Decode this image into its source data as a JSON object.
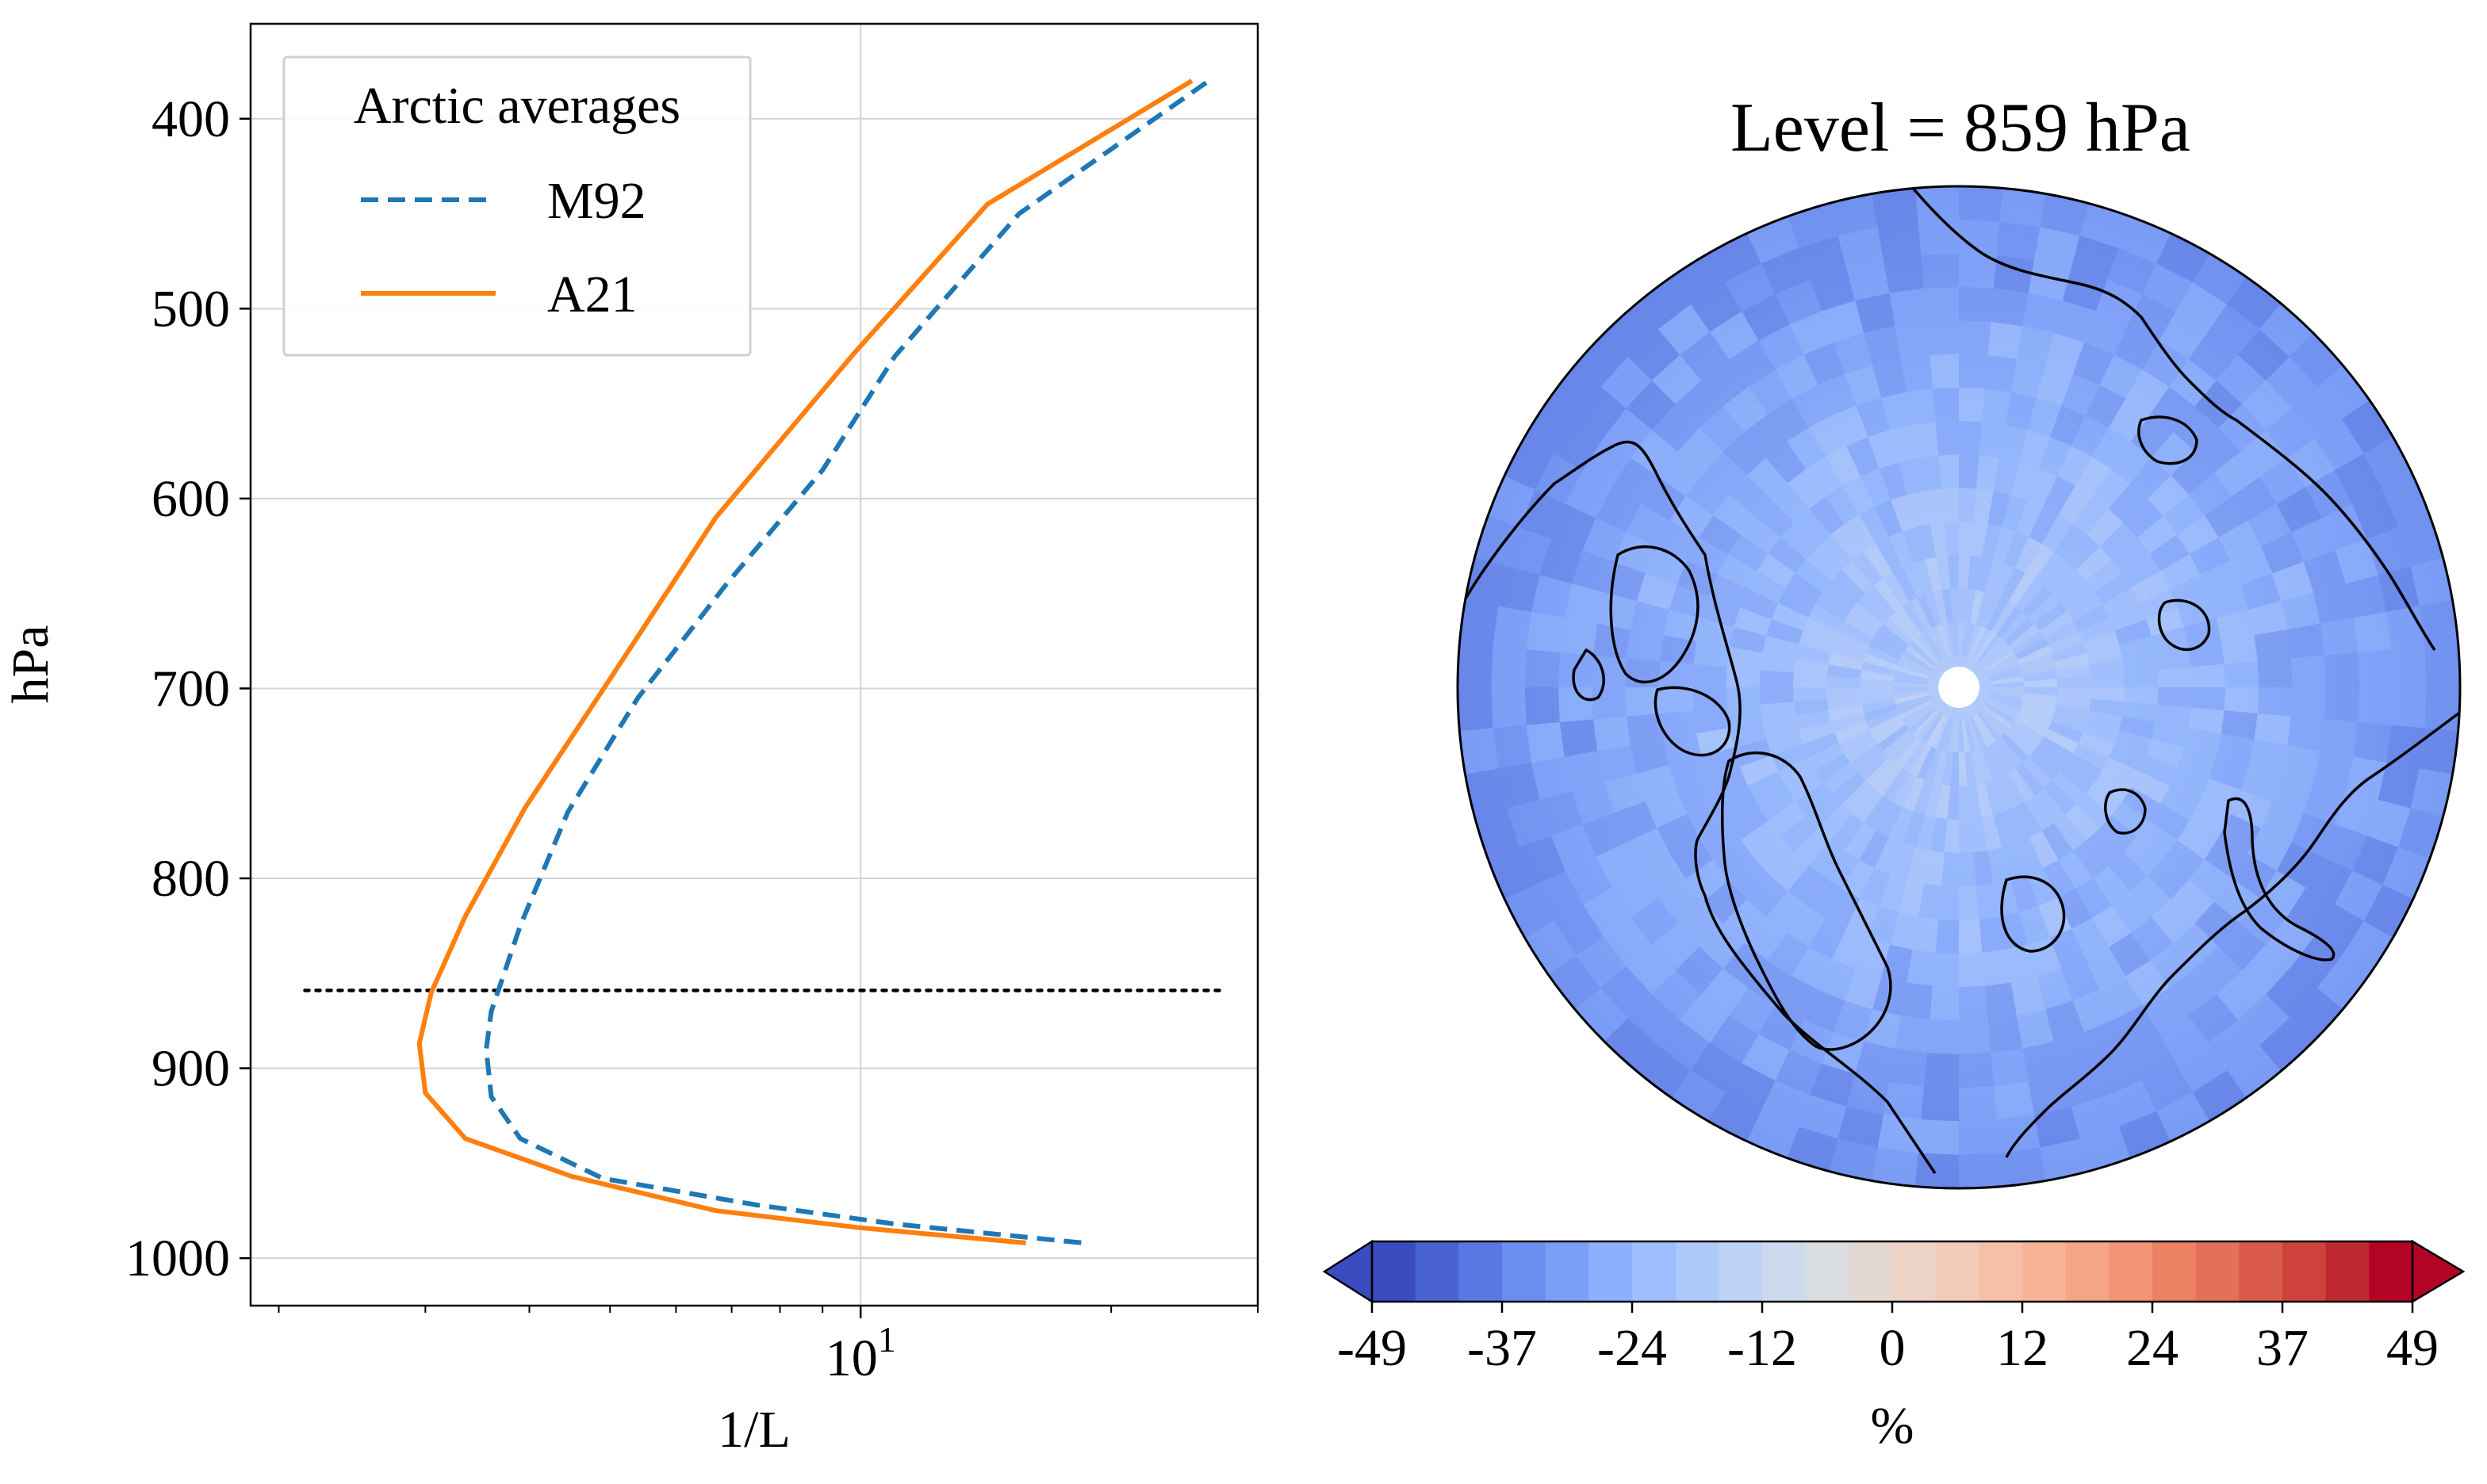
{
  "chart_data": [
    {
      "type": "line",
      "xlabel": "1/L",
      "ylabel": "hPa",
      "x_scale": "log",
      "x_tick_labels": [
        "10^1"
      ],
      "xlim": [
        1.85,
        30
      ],
      "ylim": [
        1025,
        350
      ],
      "y_ticks": [
        400,
        500,
        600,
        700,
        800,
        900,
        1000
      ],
      "y_tick_labels": [
        "400",
        "500",
        "600",
        "700",
        "800",
        "900",
        "1000"
      ],
      "grid": true,
      "legend": {
        "title": "Arctic averages",
        "position": "top-left"
      },
      "series": [
        {
          "name": "M92",
          "style": "dashed",
          "color": "#1f77b4",
          "points": [
            [
              26.0,
              381
            ],
            [
              15.5,
              450
            ],
            [
              11.0,
              525
            ],
            [
              9.0,
              585
            ],
            [
              6.9,
              645
            ],
            [
              5.4,
              705
            ],
            [
              4.45,
              765
            ],
            [
              3.9,
              825
            ],
            [
              3.6,
              870
            ],
            [
              3.55,
              890
            ],
            [
              3.6,
              915
            ],
            [
              3.9,
              937
            ],
            [
              4.9,
              958
            ],
            [
              7.5,
              972
            ],
            [
              11.0,
              982
            ],
            [
              18.5,
              992
            ]
          ]
        },
        {
          "name": "A21",
          "style": "solid",
          "color": "#ff7f0e",
          "points": [
            [
              25.0,
              380
            ],
            [
              14.2,
              445
            ],
            [
              9.8,
              524
            ],
            [
              6.7,
              610
            ],
            [
              5.0,
              695
            ],
            [
              3.95,
              763
            ],
            [
              3.35,
              820
            ],
            [
              3.05,
              860
            ],
            [
              2.95,
              887
            ],
            [
              3.0,
              913
            ],
            [
              3.35,
              937
            ],
            [
              4.5,
              957
            ],
            [
              6.7,
              975
            ],
            [
              10.0,
              984
            ],
            [
              15.8,
              992
            ]
          ]
        }
      ],
      "reference_line": {
        "y": 859,
        "x_range": [
          2.15,
          27.5
        ],
        "style": "dotted",
        "color": "#000000"
      }
    },
    {
      "type": "heatmap",
      "projection": "north-polar-stereographic",
      "title": "Level = 859 hPa",
      "colorbar": {
        "label": "%",
        "ticks": [
          "-49",
          "-37",
          "-24",
          "-12",
          "0",
          "12",
          "24",
          "37",
          "49"
        ],
        "range": [
          -49,
          49
        ],
        "levels": 25,
        "colormap": "coolwarm",
        "extend": "both",
        "colors": [
          "#3b4cc0",
          "#4a63d3",
          "#5a78e4",
          "#6b8df0",
          "#7b9ff9",
          "#8db0fe",
          "#9ebeff",
          "#aec9fc",
          "#bfd3f6",
          "#cdd9ec",
          "#d9dce1",
          "#e4d9d2",
          "#ecd3c5",
          "#f1cbb8",
          "#f5c0a7",
          "#f6b396",
          "#f5a585",
          "#f39475",
          "#ec8164",
          "#e57058",
          "#da5a49",
          "#cd423b",
          "#be2930",
          "#b40426"
        ]
      },
      "field_values_range_shown": [
        -40,
        -20
      ]
    }
  ]
}
